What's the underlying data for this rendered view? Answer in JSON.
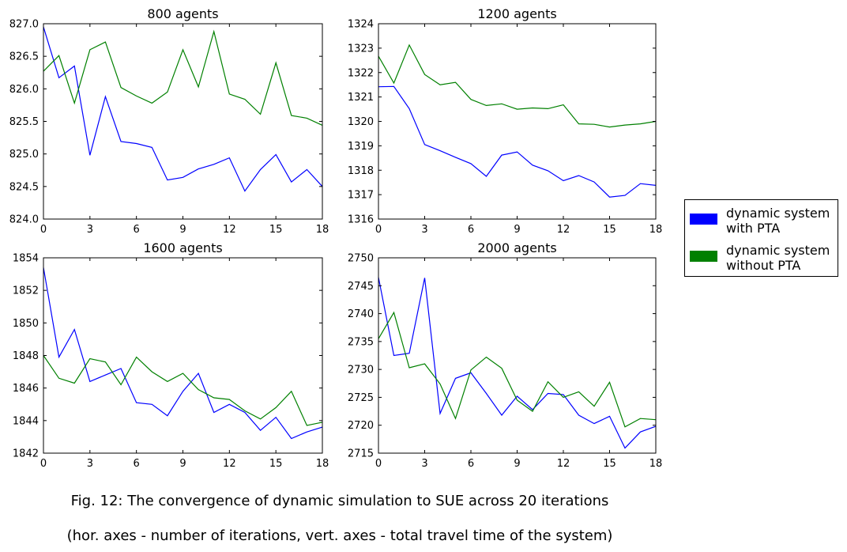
{
  "chart_data": {
    "type": "line",
    "layout": "2x2 grid with shared legend on the right",
    "legend": {
      "placement": "right",
      "entries": [
        {
          "label": "dynamic system\nwith PTA",
          "color": "#0000ff"
        },
        {
          "label": "dynamic system\nwithout PTA",
          "color": "#008000"
        }
      ]
    },
    "panels": [
      {
        "title": "800 agents",
        "xlim": [
          0,
          18
        ],
        "ylim": [
          824.0,
          827.0
        ],
        "xticks": [
          "0",
          "3",
          "6",
          "9",
          "12",
          "15",
          "18"
        ],
        "yticks": [
          "824.0",
          "824.5",
          "825.0",
          "825.5",
          "826.0",
          "826.5",
          "827.0"
        ],
        "series": [
          {
            "color": "#0000ff",
            "x": [
              0,
              1,
              2,
              3,
              4,
              5,
              6,
              7,
              8,
              9,
              10,
              11,
              12,
              13,
              14,
              15,
              16,
              17,
              18
            ],
            "values": [
              826.95,
              826.17,
              826.35,
              824.98,
              825.88,
              825.19,
              825.16,
              825.1,
              824.6,
              824.64,
              824.77,
              824.84,
              824.94,
              824.43,
              824.76,
              824.99,
              824.57,
              824.76,
              824.5
            ]
          },
          {
            "color": "#008000",
            "x": [
              0,
              1,
              2,
              3,
              4,
              5,
              6,
              7,
              8,
              9,
              10,
              11,
              12,
              13,
              14,
              15,
              16,
              17,
              18
            ],
            "values": [
              826.27,
              826.51,
              825.78,
              826.6,
              826.72,
              826.02,
              825.89,
              825.78,
              825.95,
              826.6,
              826.03,
              826.88,
              825.92,
              825.84,
              825.61,
              826.4,
              825.59,
              825.55,
              825.44
            ]
          }
        ]
      },
      {
        "title": "1200 agents",
        "xlim": [
          0,
          18
        ],
        "ylim": [
          1316,
          1324
        ],
        "xticks": [
          "0",
          "3",
          "6",
          "9",
          "12",
          "15",
          "18"
        ],
        "yticks": [
          "1316",
          "1317",
          "1318",
          "1319",
          "1320",
          "1321",
          "1322",
          "1323",
          "1324"
        ],
        "series": [
          {
            "color": "#0000ff",
            "x": [
              0,
              1,
              2,
              3,
              4,
              5,
              6,
              7,
              8,
              9,
              10,
              11,
              12,
              13,
              14,
              15,
              16,
              17,
              18
            ],
            "values": [
              1321.42,
              1321.43,
              1320.52,
              1319.05,
              1318.8,
              1318.53,
              1318.27,
              1317.75,
              1318.62,
              1318.75,
              1318.21,
              1317.98,
              1317.57,
              1317.78,
              1317.52,
              1316.9,
              1316.97,
              1317.45,
              1317.38
            ]
          },
          {
            "color": "#008000",
            "x": [
              0,
              1,
              2,
              3,
              4,
              5,
              6,
              7,
              8,
              9,
              10,
              11,
              12,
              13,
              14,
              15,
              16,
              17,
              18
            ],
            "values": [
              1322.67,
              1321.57,
              1323.13,
              1321.92,
              1321.5,
              1321.6,
              1320.9,
              1320.65,
              1320.72,
              1320.5,
              1320.55,
              1320.52,
              1320.68,
              1319.9,
              1319.88,
              1319.77,
              1319.85,
              1319.9,
              1320.0
            ]
          }
        ]
      },
      {
        "title": "1600 agents",
        "xlim": [
          0,
          18
        ],
        "ylim": [
          1842,
          1854
        ],
        "xticks": [
          "0",
          "3",
          "6",
          "9",
          "12",
          "15",
          "18"
        ],
        "yticks": [
          "1842",
          "1844",
          "1846",
          "1848",
          "1850",
          "1852",
          "1854"
        ],
        "series": [
          {
            "color": "#0000ff",
            "x": [
              0,
              1,
              2,
              3,
              4,
              5,
              6,
              7,
              8,
              9,
              10,
              11,
              12,
              13,
              14,
              15,
              16,
              17,
              18
            ],
            "values": [
              1853.4,
              1847.9,
              1849.6,
              1846.4,
              1846.8,
              1847.2,
              1845.1,
              1845.0,
              1844.3,
              1845.8,
              1846.9,
              1844.5,
              1845.0,
              1844.5,
              1843.4,
              1844.2,
              1842.9,
              1843.3,
              1843.6
            ]
          },
          {
            "color": "#008000",
            "x": [
              0,
              1,
              2,
              3,
              4,
              5,
              6,
              7,
              8,
              9,
              10,
              11,
              12,
              13,
              14,
              15,
              16,
              17,
              18
            ],
            "values": [
              1848.0,
              1846.6,
              1846.3,
              1847.8,
              1847.6,
              1846.2,
              1847.9,
              1847.0,
              1846.4,
              1846.9,
              1845.9,
              1845.4,
              1845.3,
              1844.6,
              1844.1,
              1844.8,
              1845.8,
              1843.7,
              1843.9
            ]
          }
        ]
      },
      {
        "title": "2000 agents",
        "xlim": [
          0,
          18
        ],
        "ylim": [
          2715,
          2750
        ],
        "xticks": [
          "0",
          "3",
          "6",
          "9",
          "12",
          "15",
          "18"
        ],
        "yticks": [
          "2715",
          "2720",
          "2725",
          "2730",
          "2735",
          "2740",
          "2745",
          "2750"
        ],
        "series": [
          {
            "color": "#0000ff",
            "x": [
              0,
              1,
              2,
              3,
              4,
              5,
              6,
              7,
              8,
              9,
              10,
              11,
              12,
              13,
              14,
              15,
              16,
              17,
              18
            ],
            "values": [
              2746.5,
              2732.5,
              2732.9,
              2746.4,
              2722.1,
              2728.4,
              2729.4,
              2725.7,
              2721.8,
              2725.2,
              2722.8,
              2725.7,
              2725.5,
              2721.8,
              2720.3,
              2721.6,
              2715.9,
              2718.8,
              2719.8
            ]
          },
          {
            "color": "#008000",
            "x": [
              0,
              1,
              2,
              3,
              4,
              5,
              6,
              7,
              8,
              9,
              10,
              11,
              12,
              13,
              14,
              15,
              16,
              17,
              18
            ],
            "values": [
              2735.5,
              2740.2,
              2730.3,
              2731.0,
              2727.4,
              2721.2,
              2729.9,
              2732.2,
              2730.2,
              2724.5,
              2722.5,
              2727.8,
              2725.0,
              2726.0,
              2723.4,
              2727.7,
              2719.7,
              2721.2,
              2721.0
            ]
          }
        ]
      }
    ]
  },
  "caption": {
    "line1": "Fig. 12: The convergence of dynamic simulation to SUE across 20 iterations",
    "line2": "(hor. axes - number of iterations, vert. axes - total travel time of the system)"
  }
}
